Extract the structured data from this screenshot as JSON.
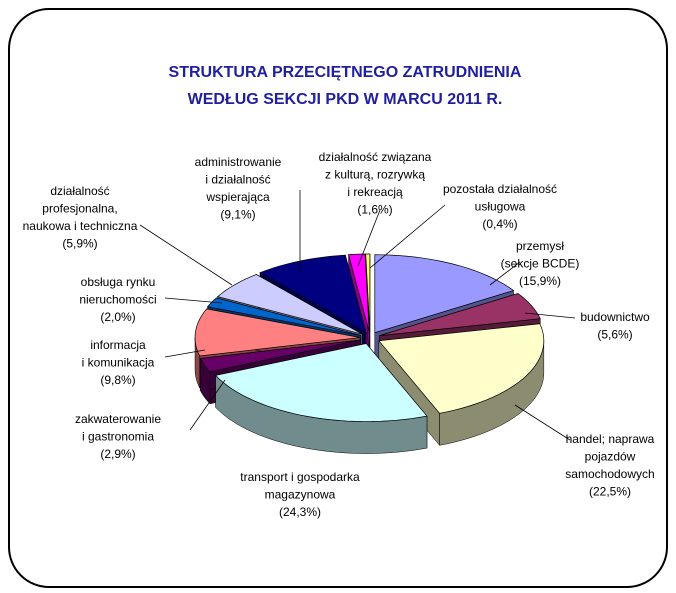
{
  "chart_data": {
    "type": "pie",
    "title": [
      "STRUKTURA PRZECIĘTNEGO ZATRUDNIENIA",
      "WEDŁUG SEKCJI PKD W MARCU 2011 R."
    ],
    "categories": [
      [
        "przemysł",
        "(sekcje BCDE)"
      ],
      [
        "budownictwo"
      ],
      [
        "handel; naprawa",
        "pojazdów",
        "samochodowych"
      ],
      [
        "transport i gospodarka",
        "magazynowa"
      ],
      [
        "zakwaterowanie",
        "i gastronomia"
      ],
      [
        "informacja",
        "i komunikacja"
      ],
      [
        "obsługa rynku",
        "nieruchomości"
      ],
      [
        "działalność",
        "profesjonalna,",
        "naukowa i techniczna"
      ],
      [
        "administrowanie",
        "i działalność",
        "wspierająca"
      ],
      [
        "działalność związana",
        "z kulturą, rozrywką",
        "i rekreacją"
      ],
      [
        "pozostała działalność",
        "usługowa"
      ]
    ],
    "values": [
      15.9,
      5.6,
      22.5,
      24.3,
      2.9,
      9.8,
      2.0,
      5.9,
      9.1,
      1.6,
      0.4
    ],
    "value_labels": [
      "(15,9%)",
      "(5,6%)",
      "(22,5%)",
      "(24,3%)",
      "(2,9%)",
      "(9,8%)",
      "(2,0%)",
      "(5,9%)",
      "(9,1%)",
      "(1,6%)",
      "(0,4%)"
    ],
    "colors": [
      "#9999ff",
      "#993366",
      "#ffffcc",
      "#ccffff",
      "#660066",
      "#ff8080",
      "#0066cc",
      "#ccccff",
      "#000080",
      "#ff00ff",
      "#ffff66"
    ]
  }
}
